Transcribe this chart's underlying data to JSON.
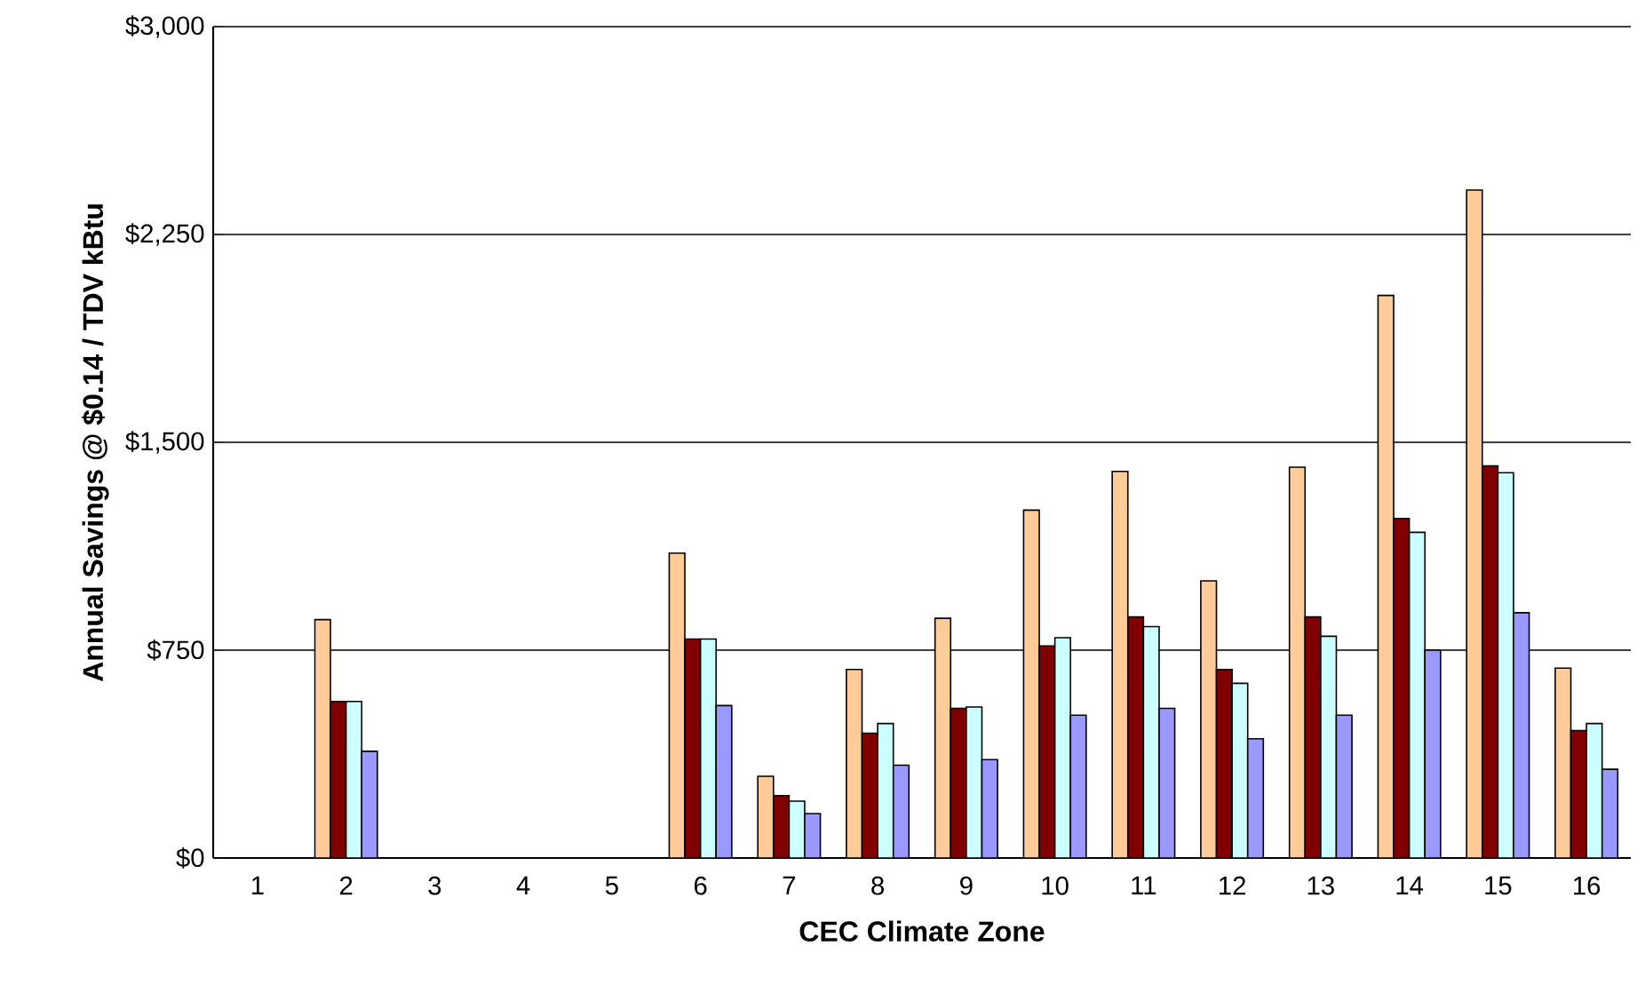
{
  "chart_data": {
    "type": "bar",
    "xlabel": "CEC Climate Zone",
    "ylabel": "Annual Savings @ $0.14 / TDV kBtu",
    "categories": [
      "1",
      "2",
      "3",
      "4",
      "5",
      "6",
      "7",
      "8",
      "9",
      "10",
      "11",
      "12",
      "13",
      "14",
      "15",
      "16"
    ],
    "series": [
      {
        "color": "#ffcc99",
        "values": [
          null,
          860,
          null,
          null,
          null,
          1100,
          295,
          680,
          865,
          1255,
          1395,
          1000,
          1410,
          2030,
          2410,
          685
        ]
      },
      {
        "color": "#800000",
        "values": [
          null,
          565,
          null,
          null,
          null,
          790,
          225,
          450,
          540,
          765,
          870,
          680,
          870,
          1225,
          1415,
          460
        ]
      },
      {
        "color": "#ccffff",
        "values": [
          null,
          565,
          null,
          null,
          null,
          790,
          205,
          485,
          545,
          795,
          835,
          630,
          800,
          1175,
          1390,
          485
        ]
      },
      {
        "color": "#9999ff",
        "values": [
          null,
          385,
          null,
          null,
          null,
          550,
          160,
          335,
          355,
          515,
          540,
          430,
          515,
          750,
          885,
          320
        ]
      }
    ],
    "ylim": [
      0,
      3000
    ],
    "yticks": [
      {
        "value": 0,
        "label": "$0"
      },
      {
        "value": 750,
        "label": "$750"
      },
      {
        "value": 1500,
        "label": "$1,500"
      },
      {
        "value": 2250,
        "label": "$2,250"
      },
      {
        "value": 3000,
        "label": "$3,000"
      }
    ],
    "grid": "y"
  }
}
